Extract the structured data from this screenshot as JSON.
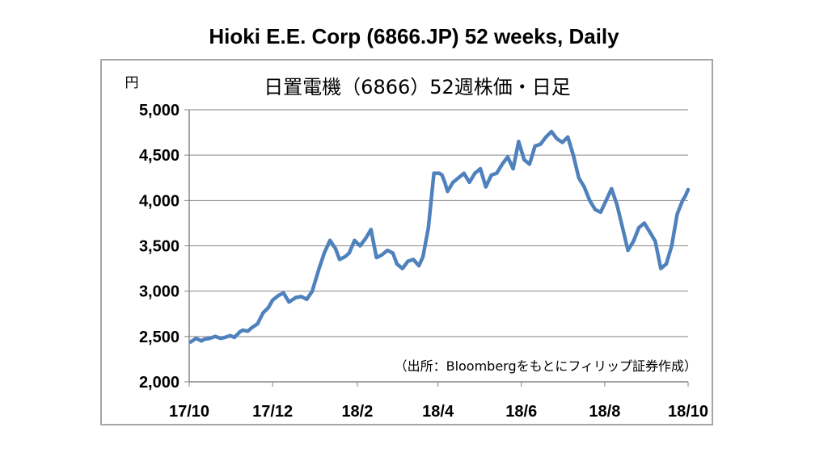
{
  "title": "Hioki E.E. Corp (6866.JP) 52 weeks, Daily",
  "chart_data": {
    "type": "line",
    "title": "日置電機（6866）52週株価・日足",
    "unit_label": "円",
    "source_note": "（出所：Bloombergをもとにフィリップ証券作成）",
    "x_tick_labels": [
      "17/10",
      "17/12",
      "18/2",
      "18/4",
      "18/6",
      "18/8",
      "18/10"
    ],
    "y_tick_labels": [
      "5,000",
      "4,500",
      "4,000",
      "3,500",
      "3,000",
      "2,500",
      "2,000"
    ],
    "y_ticks": [
      5000,
      4500,
      4000,
      3500,
      3000,
      2500,
      2000
    ],
    "ylim": [
      2000,
      5000
    ],
    "grid": true,
    "line_color": "#4f81bd",
    "series": [
      {
        "name": "",
        "x": [
          "2017-10-02",
          "2017-10-06",
          "2017-10-10",
          "2017-10-12",
          "2017-10-16",
          "2017-10-20",
          "2017-10-24",
          "2017-10-27",
          "2017-10-31",
          "2017-11-03",
          "2017-11-07",
          "2017-11-09",
          "2017-11-13",
          "2017-11-16",
          "2017-11-20",
          "2017-11-24",
          "2017-11-28",
          "2017-12-01",
          "2017-12-05",
          "2017-12-09",
          "2017-12-13",
          "2017-12-18",
          "2017-12-22",
          "2017-12-26",
          "2017-12-30",
          "2018-01-04",
          "2018-01-08",
          "2018-01-12",
          "2018-01-16",
          "2018-01-19",
          "2018-01-23",
          "2018-01-26",
          "2018-01-30",
          "2018-02-03",
          "2018-02-07",
          "2018-02-11",
          "2018-02-15",
          "2018-02-19",
          "2018-02-23",
          "2018-02-27",
          "2018-03-02",
          "2018-03-06",
          "2018-03-10",
          "2018-03-14",
          "2018-03-18",
          "2018-03-21",
          "2018-03-25",
          "2018-03-29",
          "2018-04-02",
          "2018-04-04",
          "2018-04-06",
          "2018-04-08",
          "2018-04-12",
          "2018-04-16",
          "2018-04-20",
          "2018-04-24",
          "2018-04-28",
          "2018-05-02",
          "2018-05-06",
          "2018-05-10",
          "2018-05-14",
          "2018-05-18",
          "2018-05-22",
          "2018-05-26",
          "2018-05-30",
          "2018-06-03",
          "2018-06-07",
          "2018-06-11",
          "2018-06-15",
          "2018-06-19",
          "2018-06-23",
          "2018-06-27",
          "2018-07-01",
          "2018-07-05",
          "2018-07-09",
          "2018-07-13",
          "2018-07-17",
          "2018-07-21",
          "2018-07-25",
          "2018-07-29",
          "2018-08-02",
          "2018-08-06",
          "2018-08-10",
          "2018-08-14",
          "2018-08-18",
          "2018-08-22",
          "2018-08-26",
          "2018-08-30",
          "2018-09-03",
          "2018-09-07",
          "2018-09-11",
          "2018-09-15",
          "2018-09-19",
          "2018-09-23",
          "2018-09-27",
          "2018-09-29",
          "2018-10-01"
        ],
        "values": [
          2440,
          2480,
          2450,
          2470,
          2480,
          2500,
          2480,
          2490,
          2510,
          2490,
          2550,
          2570,
          2560,
          2600,
          2640,
          2760,
          2820,
          2900,
          2950,
          2980,
          2880,
          2930,
          2940,
          2910,
          3000,
          3250,
          3430,
          3560,
          3470,
          3350,
          3380,
          3420,
          3560,
          3500,
          3580,
          3680,
          3370,
          3400,
          3450,
          3420,
          3300,
          3250,
          3330,
          3350,
          3280,
          3380,
          3700,
          4300,
          4300,
          4280,
          4200,
          4100,
          4200,
          4250,
          4300,
          4200,
          4300,
          4350,
          4150,
          4280,
          4300,
          4400,
          4480,
          4350,
          4650,
          4450,
          4400,
          4600,
          4620,
          4700,
          4760,
          4680,
          4640,
          4700,
          4500,
          4250,
          4150,
          4000,
          3900,
          3870,
          4000,
          4130,
          3950,
          3700,
          3450,
          3550,
          3700,
          3750,
          3650,
          3550,
          3250,
          3300,
          3500,
          3850,
          4000,
          4050,
          4120
        ]
      }
    ]
  }
}
